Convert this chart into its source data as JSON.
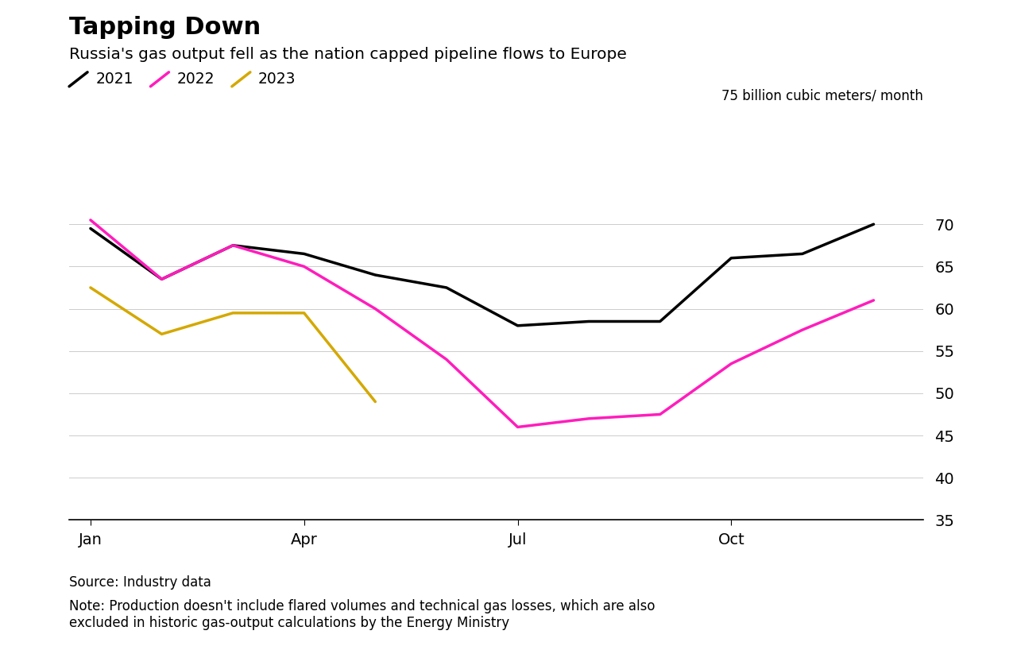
{
  "title": "Tapping Down",
  "subtitle": "Russia's gas output fell as the nation capped pipeline flows to Europe",
  "ylabel": "75 billion cubic meters/ month",
  "background_color": "#ffffff",
  "ylim": [
    35,
    75
  ],
  "yticks": [
    35,
    40,
    45,
    50,
    55,
    60,
    65,
    70
  ],
  "series_2021": [
    69.5,
    63.5,
    67.5,
    66.5,
    64.0,
    62.5,
    58.0,
    58.5,
    58.5,
    66.0,
    66.5,
    70.0
  ],
  "series_2022": [
    70.5,
    63.5,
    67.5,
    65.0,
    60.0,
    54.0,
    46.0,
    47.0,
    47.5,
    53.5,
    57.5,
    61.0
  ],
  "series_2023": [
    62.5,
    57.0,
    59.5,
    59.5,
    49.0,
    null,
    null,
    null,
    null,
    null,
    null,
    null
  ],
  "color_2021": "#000000",
  "color_2022": "#ff1dbc",
  "color_2023": "#d4a800",
  "line_width": 2.5,
  "source_text": "Source: Industry data",
  "note_text": "Note: Production doesn't include flared volumes and technical gas losses, which are also\nexcluded in historic gas-output calculations by the Energy Ministry",
  "legend_labels": [
    "2021",
    "2022",
    "2023"
  ],
  "xtick_positions": [
    0,
    3,
    6,
    9
  ],
  "xtick_labels": [
    "Jan",
    "Apr",
    "Jul",
    "Oct"
  ]
}
